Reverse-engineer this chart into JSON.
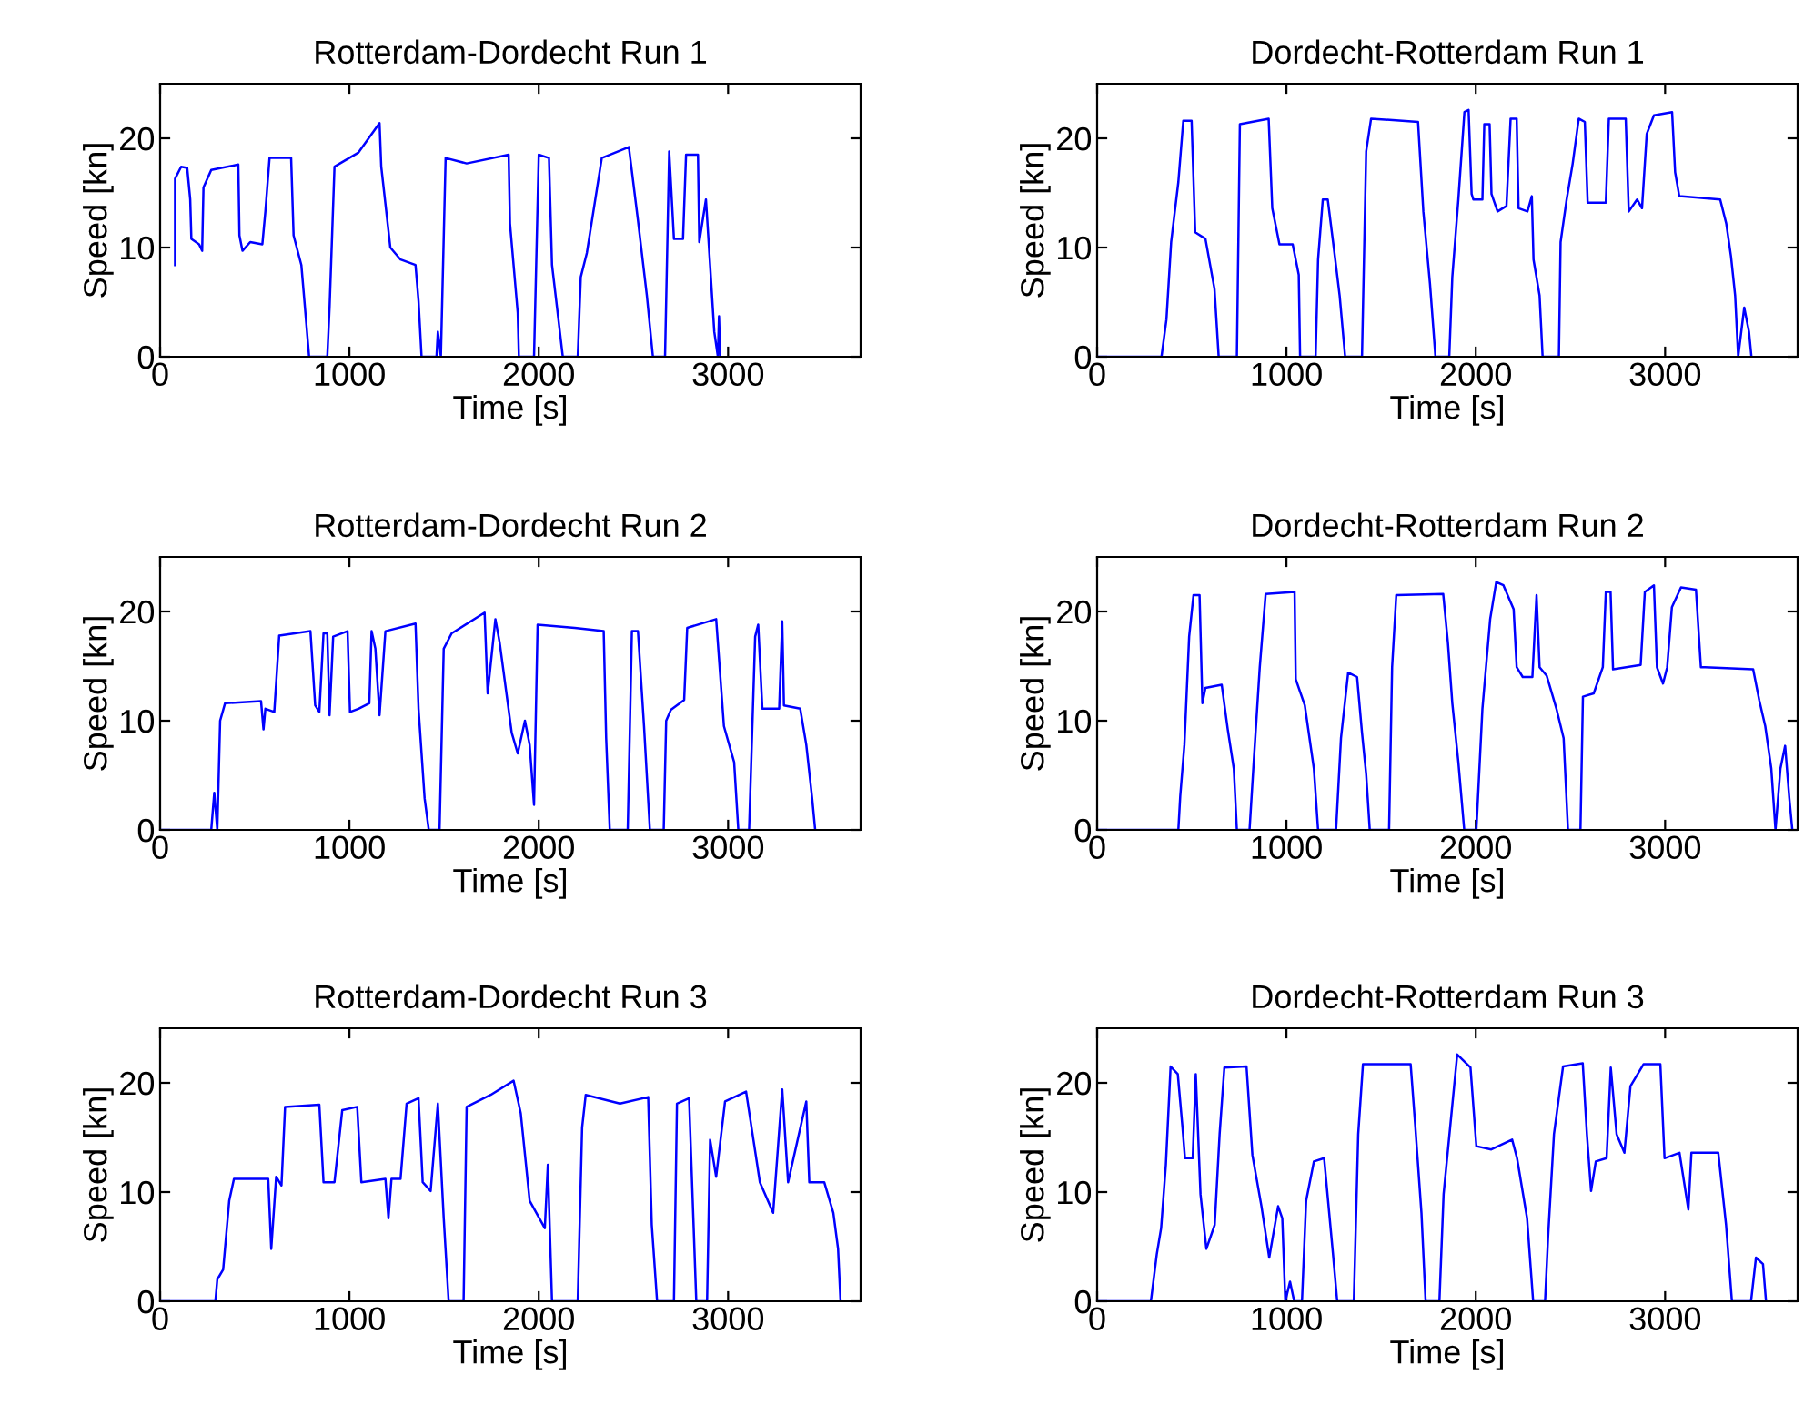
{
  "chart_data": [
    {
      "type": "line",
      "title": "Rotterdam-Dordecht Run 1",
      "xlabel": "Time [s]",
      "ylabel": "Speed [kn]",
      "xlim": [
        0,
        3700
      ],
      "xticks": [
        0,
        1000,
        2000,
        3000
      ],
      "ylim": [
        0,
        25
      ],
      "yticks": [
        0,
        10,
        20
      ],
      "grid": false,
      "marker": "none",
      "line_style": "solid",
      "x": [
        79,
        79,
        111,
        143,
        159,
        165,
        206,
        222,
        229,
        270,
        413,
        419,
        435,
        476,
        540,
        556,
        578,
        692,
        705,
        746,
        787,
        883,
        895,
        921,
        1048,
        1159,
        1168,
        1216,
        1270,
        1349,
        1365,
        1381,
        1460,
        1467,
        1483,
        1508,
        1619,
        1841,
        1848,
        1889,
        1895,
        1975,
        2000,
        2054,
        2070,
        2127,
        2206,
        2222,
        2254,
        2333,
        2476,
        2524,
        2571,
        2603,
        2667,
        2689,
        2714,
        2762,
        2778,
        2841,
        2848,
        2883,
        2905,
        2927,
        2946,
        2952,
        2959
      ],
      "series": [
        {
          "color": "#0000ff",
          "values": [
            8.4,
            16.3,
            17.4,
            17.3,
            14.4,
            10.8,
            10.3,
            9.7,
            15.5,
            17.1,
            17.6,
            11.1,
            9.7,
            10.5,
            10.3,
            13.3,
            18.2,
            18.2,
            11.1,
            8.4,
            0,
            0,
            4.5,
            17.4,
            18.7,
            21.4,
            17.4,
            10.0,
            8.9,
            8.4,
            5.1,
            0,
            0,
            2.3,
            0,
            18.2,
            17.7,
            18.5,
            12.2,
            4.0,
            0,
            0,
            18.5,
            18.2,
            8.4,
            0,
            0,
            7.3,
            9.5,
            18.2,
            19.2,
            12.5,
            5.6,
            0,
            0,
            18.8,
            10.8,
            10.8,
            18.5,
            18.5,
            10.5,
            14.4,
            8.4,
            2.3,
            0,
            3.7,
            0
          ]
        }
      ]
    },
    {
      "type": "line",
      "title": "Dordecht-Rotterdam Run 1",
      "xlabel": "Time [s]",
      "ylabel": "Speed [kn]",
      "xlim": [
        0,
        3700
      ],
      "xticks": [
        0,
        1000,
        2000,
        3000
      ],
      "ylim": [
        0,
        25
      ],
      "yticks": [
        0,
        10,
        20
      ],
      "grid": false,
      "marker": "none",
      "line_style": "solid",
      "x": [
        0,
        340,
        366,
        391,
        429,
        455,
        499,
        518,
        572,
        620,
        642,
        738,
        754,
        906,
        925,
        963,
        1033,
        1065,
        1072,
        1154,
        1167,
        1192,
        1218,
        1250,
        1281,
        1310,
        1399,
        1421,
        1447,
        1695,
        1723,
        1758,
        1787,
        1860,
        1876,
        1908,
        1940,
        1962,
        1978,
        1987,
        2035,
        2045,
        2073,
        2083,
        2115,
        2162,
        2184,
        2216,
        2226,
        2273,
        2296,
        2305,
        2337,
        2353,
        2439,
        2448,
        2480,
        2512,
        2544,
        2576,
        2591,
        2687,
        2703,
        2792,
        2808,
        2852,
        2878,
        2903,
        2941,
        3037,
        3053,
        3075,
        3291,
        3323,
        3348,
        3370,
        3386,
        3418,
        3443,
        3456
      ],
      "series": [
        {
          "color": "#0000ff",
          "values": [
            0,
            0,
            3.4,
            10.5,
            16.0,
            21.6,
            21.6,
            11.4,
            10.8,
            6.2,
            0,
            0,
            21.3,
            21.8,
            13.6,
            10.3,
            10.3,
            7.5,
            0,
            0,
            8.9,
            14.4,
            14.4,
            10.0,
            5.6,
            0,
            0,
            18.8,
            21.8,
            21.5,
            13.3,
            6.7,
            0,
            0,
            7.3,
            14.4,
            22.4,
            22.6,
            14.9,
            14.4,
            14.4,
            21.3,
            21.3,
            14.9,
            13.3,
            13.8,
            21.8,
            21.8,
            13.6,
            13.3,
            14.7,
            8.9,
            5.6,
            0,
            0,
            10.5,
            14.4,
            17.7,
            21.8,
            21.5,
            14.1,
            14.1,
            21.8,
            21.8,
            13.3,
            14.4,
            13.6,
            20.4,
            22.1,
            22.4,
            16.9,
            14.7,
            14.4,
            12.2,
            9.2,
            5.6,
            0,
            4.5,
            2.3,
            0
          ]
        }
      ]
    },
    {
      "type": "line",
      "title": "Rotterdam-Dordecht Run 2",
      "xlabel": "Time [s]",
      "ylabel": "Speed [kn]",
      "xlim": [
        0,
        3700
      ],
      "xticks": [
        0,
        1000,
        2000,
        3000
      ],
      "ylim": [
        0,
        25
      ],
      "yticks": [
        0,
        10,
        20
      ],
      "grid": false,
      "marker": "none",
      "line_style": "solid",
      "x": [
        0,
        270,
        286,
        302,
        317,
        343,
        533,
        546,
        556,
        603,
        629,
        794,
        819,
        841,
        863,
        883,
        895,
        914,
        990,
        1003,
        1048,
        1105,
        1117,
        1137,
        1159,
        1190,
        1349,
        1365,
        1397,
        1419,
        1476,
        1498,
        1540,
        1714,
        1730,
        1771,
        1794,
        1857,
        1889,
        1927,
        1952,
        1975,
        1994,
        2190,
        2343,
        2356,
        2375,
        2470,
        2492,
        2524,
        2556,
        2587,
        2660,
        2673,
        2698,
        2768,
        2784,
        2937,
        2978,
        3032,
        3054,
        3111,
        3143,
        3159,
        3181,
        3270,
        3286,
        3295,
        3381,
        3413,
        3444,
        3460
      ],
      "series": [
        {
          "color": "#0000ff",
          "values": [
            0,
            0,
            3.4,
            0,
            10.0,
            11.6,
            11.8,
            9.2,
            11.1,
            10.8,
            17.8,
            18.2,
            11.4,
            10.8,
            18.0,
            18.0,
            10.5,
            17.7,
            18.2,
            10.8,
            11.1,
            11.6,
            18.2,
            16.6,
            10.5,
            18.2,
            18.9,
            11.1,
            2.9,
            0,
            0,
            16.6,
            18.0,
            19.9,
            12.5,
            19.3,
            17.1,
            8.9,
            7.0,
            10.0,
            7.8,
            2.3,
            18.8,
            18.5,
            18.2,
            8.4,
            0,
            0,
            18.2,
            18.2,
            9.5,
            0,
            0,
            10.0,
            11.0,
            11.9,
            18.5,
            19.3,
            9.5,
            6.2,
            0,
            0,
            17.7,
            18.8,
            11.1,
            11.1,
            19.1,
            11.4,
            11.1,
            7.8,
            2.9,
            0
          ]
        }
      ]
    },
    {
      "type": "line",
      "title": "Dordecht-Rotterdam Run 2",
      "xlabel": "Time [s]",
      "ylabel": "Speed [kn]",
      "xlim": [
        0,
        3700
      ],
      "xticks": [
        0,
        1000,
        2000,
        3000
      ],
      "ylim": [
        0,
        25
      ],
      "yticks": [
        0,
        10,
        20
      ],
      "grid": false,
      "marker": "none",
      "line_style": "solid",
      "x": [
        0,
        429,
        439,
        461,
        486,
        509,
        541,
        556,
        572,
        658,
        690,
        722,
        738,
        805,
        827,
        859,
        890,
        1043,
        1049,
        1097,
        1145,
        1167,
        1262,
        1288,
        1326,
        1373,
        1399,
        1421,
        1440,
        1542,
        1558,
        1580,
        1828,
        1853,
        1876,
        1908,
        1939,
        2003,
        2035,
        2076,
        2108,
        2146,
        2200,
        2216,
        2248,
        2299,
        2321,
        2337,
        2375,
        2426,
        2464,
        2487,
        2553,
        2566,
        2623,
        2671,
        2687,
        2712,
        2725,
        2871,
        2893,
        2941,
        2957,
        2989,
        3011,
        3036,
        3084,
        3163,
        3189,
        3211,
        3465,
        3497,
        3529,
        3561,
        3583,
        3609,
        3634,
        3656,
        3672
      ],
      "series": [
        {
          "color": "#0000ff",
          "values": [
            0,
            0,
            3.1,
            7.8,
            17.7,
            21.5,
            21.5,
            11.6,
            13.0,
            13.3,
            9.2,
            5.6,
            0,
            0,
            6.2,
            14.9,
            21.6,
            21.8,
            13.8,
            11.4,
            5.6,
            0,
            0,
            8.4,
            14.4,
            14.0,
            8.9,
            5.1,
            0,
            0,
            14.9,
            21.5,
            21.6,
            17.1,
            11.6,
            6.2,
            0,
            0,
            11.1,
            19.3,
            22.7,
            22.4,
            20.2,
            14.9,
            14.0,
            14.0,
            21.5,
            14.9,
            14.1,
            11.1,
            8.4,
            0,
            0,
            12.2,
            12.5,
            14.9,
            21.8,
            21.8,
            14.7,
            15.1,
            21.8,
            22.4,
            14.9,
            13.4,
            14.9,
            20.4,
            22.2,
            22.0,
            14.9,
            14.9,
            14.7,
            11.9,
            9.5,
            5.6,
            0,
            5.6,
            7.7,
            2.9,
            0
          ]
        }
      ]
    },
    {
      "type": "line",
      "title": "Rotterdam-Dordecht Run 3",
      "xlabel": "Time [s]",
      "ylabel": "Speed [kn]",
      "xlim": [
        0,
        3700
      ],
      "xticks": [
        0,
        1000,
        2000,
        3000
      ],
      "ylim": [
        0,
        25
      ],
      "yticks": [
        0,
        10,
        20
      ],
      "grid": false,
      "marker": "none",
      "line_style": "solid",
      "x": [
        0,
        292,
        302,
        333,
        365,
        390,
        571,
        587,
        613,
        641,
        660,
        841,
        863,
        921,
        962,
        1041,
        1063,
        1190,
        1206,
        1222,
        1270,
        1302,
        1365,
        1387,
        1429,
        1467,
        1498,
        1524,
        1603,
        1619,
        1746,
        1867,
        1905,
        1952,
        2032,
        2048,
        2070,
        2206,
        2229,
        2248,
        2429,
        2578,
        2597,
        2625,
        2714,
        2730,
        2794,
        2832,
        2889,
        2905,
        2937,
        2984,
        3095,
        3168,
        3238,
        3286,
        3317,
        3413,
        3429,
        3508,
        3556,
        3581,
        3594
      ],
      "series": [
        {
          "color": "#0000ff",
          "values": [
            0,
            0,
            2.0,
            2.9,
            9.2,
            11.2,
            11.2,
            4.8,
            11.4,
            10.6,
            17.8,
            18.0,
            10.9,
            10.9,
            17.5,
            17.8,
            10.9,
            11.2,
            7.6,
            11.2,
            11.2,
            18.1,
            18.6,
            10.9,
            10.1,
            18.1,
            7.6,
            0,
            0,
            17.8,
            18.9,
            20.2,
            17.2,
            9.2,
            6.7,
            12.5,
            0,
            0,
            15.9,
            18.9,
            18.1,
            18.7,
            7.0,
            0,
            0,
            18.1,
            18.6,
            0,
            0,
            14.8,
            11.4,
            18.3,
            19.2,
            10.9,
            8.1,
            19.4,
            10.9,
            18.3,
            10.9,
            10.9,
            8.1,
            4.8,
            0
          ]
        }
      ]
    },
    {
      "type": "line",
      "title": "Dordecht-Rotterdam Run 3",
      "xlabel": "Time [s]",
      "ylabel": "Speed [kn]",
      "xlim": [
        0,
        3700
      ],
      "xticks": [
        0,
        1000,
        2000,
        3000
      ],
      "ylim": [
        0,
        25
      ],
      "yticks": [
        0,
        10,
        20
      ],
      "grid": false,
      "marker": "none",
      "line_style": "solid",
      "x": [
        0,
        284,
        315,
        338,
        363,
        388,
        426,
        451,
        464,
        505,
        521,
        546,
        577,
        621,
        647,
        672,
        789,
        820,
        868,
        909,
        956,
        978,
        994,
        1019,
        1041,
        1082,
        1104,
        1145,
        1199,
        1246,
        1268,
        1356,
        1379,
        1404,
        1656,
        1681,
        1713,
        1735,
        1808,
        1830,
        1861,
        1902,
        1972,
        2003,
        2082,
        2192,
        2218,
        2271,
        2303,
        2366,
        2382,
        2413,
        2461,
        2565,
        2587,
        2609,
        2634,
        2691,
        2713,
        2744,
        2785,
        2817,
        2886,
        2975,
        2997,
        3076,
        3123,
        3139,
        3281,
        3322,
        3353,
        3454,
        3480,
        3517,
        3533
      ],
      "series": [
        {
          "color": "#0000ff",
          "values": [
            0,
            0,
            4.3,
            6.7,
            12.5,
            21.5,
            20.8,
            15.9,
            13.1,
            13.1,
            20.8,
            9.8,
            4.8,
            7.0,
            15.3,
            21.4,
            21.5,
            13.4,
            8.7,
            4.0,
            8.7,
            7.6,
            0,
            1.8,
            0,
            0,
            9.2,
            12.8,
            13.1,
            4.3,
            0,
            0,
            15.3,
            21.7,
            21.7,
            15.9,
            8.1,
            0,
            0,
            9.8,
            15.3,
            22.6,
            21.4,
            14.2,
            13.9,
            14.8,
            13.1,
            7.6,
            0,
            0,
            5.9,
            15.3,
            21.5,
            21.8,
            15.3,
            10.1,
            12.8,
            13.1,
            21.4,
            15.3,
            13.6,
            19.7,
            21.7,
            21.7,
            13.1,
            13.6,
            8.4,
            13.6,
            13.6,
            7.0,
            0,
            0,
            4.0,
            3.4,
            0
          ]
        }
      ]
    }
  ]
}
